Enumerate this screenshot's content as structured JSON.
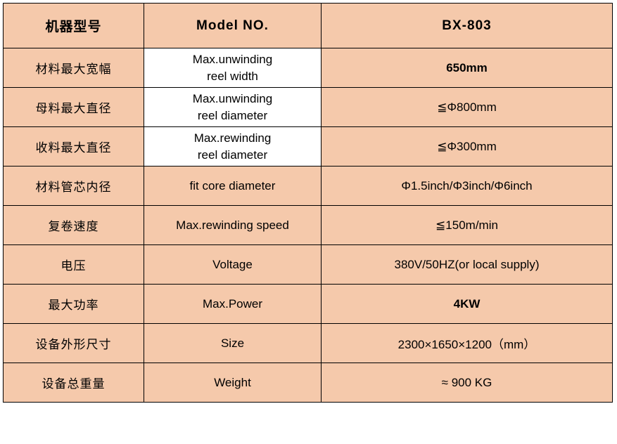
{
  "table": {
    "colors": {
      "peach": "#f5c9ab",
      "white": "#ffffff",
      "border": "#000000",
      "text": "#000000"
    },
    "header": {
      "cn": "机器型号",
      "en": "Model NO.",
      "val": "BX-803"
    },
    "rows": [
      {
        "cn": "材料最大宽幅",
        "en_line1": "Max.unwinding",
        "en_line2": "reel width",
        "val": "650mm",
        "val_bold": true
      },
      {
        "cn": "母料最大直径",
        "en_line1": "Max.unwinding",
        "en_line2": "reel diameter",
        "val": "≦Φ800mm"
      },
      {
        "cn": "收料最大直径",
        "en_line1": "Max.rewinding",
        "en_line2": "reel diameter",
        "val": "≦Φ300mm"
      },
      {
        "cn": "材料管芯内径",
        "en_single": "fit core diameter",
        "val": "Φ1.5inch/Φ3inch/Φ6inch"
      },
      {
        "cn": "复卷速度",
        "en_single": "Max.rewinding speed",
        "val": "≦150m/min"
      },
      {
        "cn": "电压",
        "en_single": "Voltage",
        "val": "380V/50HZ(or local supply)"
      },
      {
        "cn": "最大功率",
        "en_single": "Max.Power",
        "val": "4KW",
        "val_bold": true
      },
      {
        "cn": "设备外形尺寸",
        "en_single": "Size",
        "val": "2300×1650×1200（mm）"
      },
      {
        "cn": "设备总重量",
        "en_single": "Weight",
        "val": "≈  900 KG"
      }
    ]
  }
}
